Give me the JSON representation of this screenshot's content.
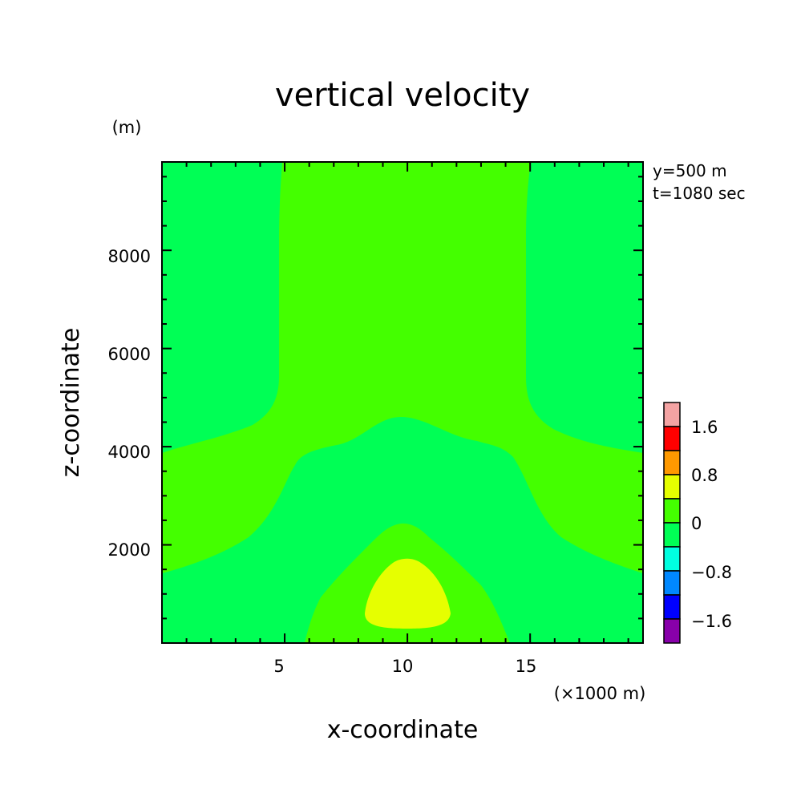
{
  "chart_data": {
    "type": "heatmap",
    "title": "vertical velocity",
    "xlabel": "x-coordinate",
    "ylabel": "z-coordinate",
    "x_unit": "(×1000 m)",
    "y_unit": "(m)",
    "annotations": [
      "y=500 m",
      "t=1080 sec"
    ],
    "xlim": [
      0,
      19.6
    ],
    "ylim": [
      0,
      9800
    ],
    "x_ticks": [
      "5",
      "10",
      "15"
    ],
    "y_ticks": [
      "2000",
      "4000",
      "6000",
      "8000"
    ],
    "grid": false,
    "colorbar": {
      "labels": [
        "1.6",
        "0.8",
        "0",
        "−0.8",
        "−1.6"
      ],
      "colors": [
        "#f4a3a3",
        "#ff0000",
        "#ff9900",
        "#e6ff00",
        "#44ff00",
        "#00ff55",
        "#00ffe0",
        "#0088ff",
        "#0000ff",
        "#8800aa"
      ]
    },
    "regions": [
      {
        "level": "0 to 0.4",
        "color": "#44ff00",
        "description": "central column and lower band"
      },
      {
        "level": "-0.4 to 0",
        "color": "#00ff55",
        "description": "sides aloft and central dome"
      },
      {
        "level": "0.4 to 0.8",
        "color": "#e6ff00",
        "description": "updraft core near x=10, z<1800"
      }
    ]
  }
}
